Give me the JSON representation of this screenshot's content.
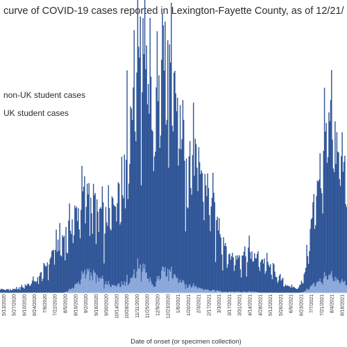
{
  "chart_data": {
    "type": "bar",
    "title": "curve of COVID-19 cases reported in Lexington-Fayette County, as of 12/21/",
    "xlabel": "Date of onset (or specimen collection)",
    "ylabel": "",
    "series": [
      {
        "name": "non-UK student cases",
        "color": "#2f5597",
        "weekly_totals": [
          3,
          3,
          3,
          4,
          6,
          9,
          12,
          18,
          30,
          38,
          45,
          50,
          58,
          62,
          70,
          60,
          55,
          52,
          65,
          85,
          110,
          140,
          185,
          210,
          160,
          130,
          190,
          170,
          150,
          130,
          120,
          110,
          100,
          90,
          75,
          58,
          44,
          30,
          28,
          32,
          34,
          30,
          28,
          24,
          18,
          12,
          7,
          5,
          4,
          12,
          45,
          80,
          105,
          125,
          115,
          105
        ]
      },
      {
        "name": "UK student cases",
        "color": "#8faadc",
        "weekly_totals": [
          0,
          0,
          0,
          0,
          0,
          0,
          0,
          0,
          0,
          0,
          0,
          2,
          6,
          12,
          20,
          16,
          12,
          8,
          6,
          8,
          10,
          12,
          20,
          25,
          10,
          6,
          20,
          18,
          14,
          10,
          8,
          6,
          4,
          3,
          2,
          2,
          1,
          1,
          1,
          1,
          1,
          1,
          0,
          0,
          0,
          0,
          0,
          0,
          0,
          1,
          5,
          9,
          12,
          14,
          12,
          10
        ]
      }
    ],
    "x_ticks": [
      "5/13/2020",
      "5/27/2020",
      "6/10/2020",
      "6/24/2020",
      "7/8/2020",
      "7/22/2020",
      "8/5/2020",
      "8/19/2020",
      "9/2/2020",
      "9/16/2020",
      "9/30/2020",
      "10/14/2020",
      "10/28/2020",
      "11/11/2020",
      "11/25/2020",
      "12/9/2020",
      "12/23/2020",
      "1/6/2021",
      "1/20/2021",
      "2/3/2021",
      "2/17/2021",
      "3/3/2021",
      "3/17/2021",
      "3/31/2021",
      "4/14/2021",
      "4/28/2021",
      "5/12/2021",
      "5/26/2021",
      "6/9/2021",
      "6/23/2021",
      "7/7/2021",
      "7/21/2021",
      "8/4/2021",
      "8/18/2021"
    ],
    "ylim": [
      0,
      215
    ],
    "grid": false,
    "legend": "top-left"
  }
}
